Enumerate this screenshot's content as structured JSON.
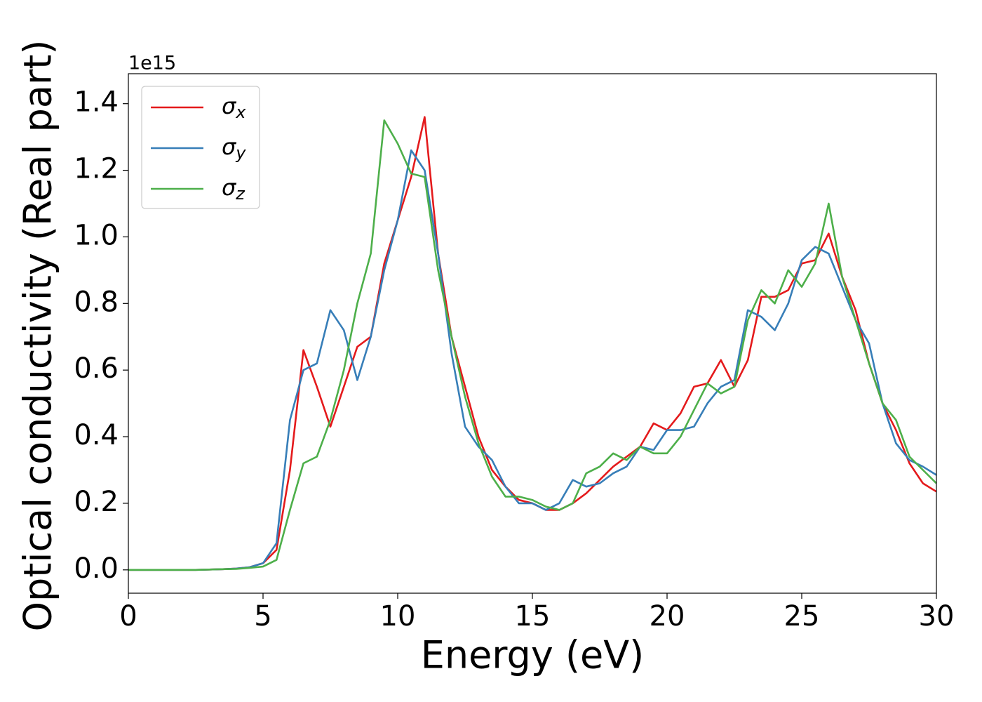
{
  "chart_data": {
    "type": "line",
    "xlabel": "Energy (eV)",
    "ylabel": "Optical conductivity (Real part)",
    "offset_label": "1e15",
    "x": [
      0,
      0.5,
      1,
      1.5,
      2,
      2.5,
      3,
      3.5,
      4,
      4.5,
      5,
      5.5,
      6,
      6.5,
      7,
      7.5,
      8,
      8.5,
      9,
      9.5,
      10,
      10.5,
      11,
      11.5,
      12,
      12.5,
      13,
      13.5,
      14,
      14.5,
      15,
      15.5,
      16,
      16.5,
      17,
      17.5,
      18,
      18.5,
      19,
      19.5,
      20,
      20.5,
      21,
      21.5,
      22,
      22.5,
      23,
      23.5,
      24,
      24.5,
      25,
      25.5,
      26,
      26.5,
      27,
      27.5,
      28,
      28.5,
      29,
      29.5,
      30
    ],
    "series": [
      {
        "name": "σx",
        "color": "#e41a1c",
        "values": [
          0,
          0,
          0,
          0,
          0,
          0,
          0.001,
          0.002,
          0.004,
          0.008,
          0.02,
          0.06,
          0.3,
          0.66,
          0.55,
          0.43,
          0.55,
          0.67,
          0.7,
          0.92,
          1.05,
          1.18,
          1.36,
          0.95,
          0.7,
          0.55,
          0.4,
          0.3,
          0.25,
          0.21,
          0.2,
          0.18,
          0.18,
          0.2,
          0.23,
          0.27,
          0.31,
          0.34,
          0.37,
          0.44,
          0.42,
          0.47,
          0.55,
          0.56,
          0.63,
          0.55,
          0.63,
          0.82,
          0.82,
          0.84,
          0.92,
          0.93,
          1.01,
          0.88,
          0.78,
          0.62,
          0.5,
          0.42,
          0.32,
          0.26,
          0.235
        ]
      },
      {
        "name": "σy",
        "color": "#377eb8",
        "values": [
          0,
          0,
          0,
          0,
          0,
          0,
          0.001,
          0.002,
          0.004,
          0.008,
          0.02,
          0.08,
          0.45,
          0.6,
          0.62,
          0.78,
          0.72,
          0.57,
          0.7,
          0.9,
          1.05,
          1.26,
          1.2,
          0.95,
          0.65,
          0.43,
          0.37,
          0.33,
          0.25,
          0.2,
          0.2,
          0.18,
          0.2,
          0.27,
          0.25,
          0.26,
          0.29,
          0.31,
          0.37,
          0.36,
          0.42,
          0.42,
          0.43,
          0.5,
          0.55,
          0.57,
          0.78,
          0.76,
          0.72,
          0.8,
          0.93,
          0.97,
          0.95,
          0.85,
          0.75,
          0.68,
          0.5,
          0.38,
          0.33,
          0.31,
          0.285
        ]
      },
      {
        "name": "σz",
        "color": "#4daf4a",
        "values": [
          0,
          0,
          0,
          0,
          0,
          0,
          0.001,
          0.002,
          0.003,
          0.006,
          0.01,
          0.03,
          0.18,
          0.32,
          0.34,
          0.45,
          0.6,
          0.8,
          0.95,
          1.35,
          1.28,
          1.19,
          1.18,
          0.9,
          0.7,
          0.52,
          0.38,
          0.28,
          0.22,
          0.22,
          0.21,
          0.19,
          0.18,
          0.2,
          0.29,
          0.31,
          0.35,
          0.33,
          0.37,
          0.35,
          0.35,
          0.4,
          0.48,
          0.56,
          0.53,
          0.55,
          0.75,
          0.84,
          0.8,
          0.9,
          0.85,
          0.92,
          1.1,
          0.88,
          0.75,
          0.62,
          0.5,
          0.45,
          0.34,
          0.3,
          0.26
        ]
      }
    ],
    "xlim": [
      0,
      30
    ],
    "xticks": [
      0,
      5,
      10,
      15,
      20,
      25,
      30
    ],
    "ylim": [
      -0.07,
      1.49
    ],
    "yticks": [
      {
        "value": 0,
        "label": "0.0"
      },
      {
        "value": 0.2,
        "label": "0.2"
      },
      {
        "value": 0.4,
        "label": "0.4"
      },
      {
        "value": 0.6,
        "label": "0.6"
      },
      {
        "value": 0.8,
        "label": "0.8"
      },
      {
        "value": 1.0,
        "label": "1.0"
      },
      {
        "value": 1.2,
        "label": "1.2"
      },
      {
        "value": 1.4,
        "label": "1.4"
      }
    ],
    "legend": "upper left",
    "grid": false
  }
}
